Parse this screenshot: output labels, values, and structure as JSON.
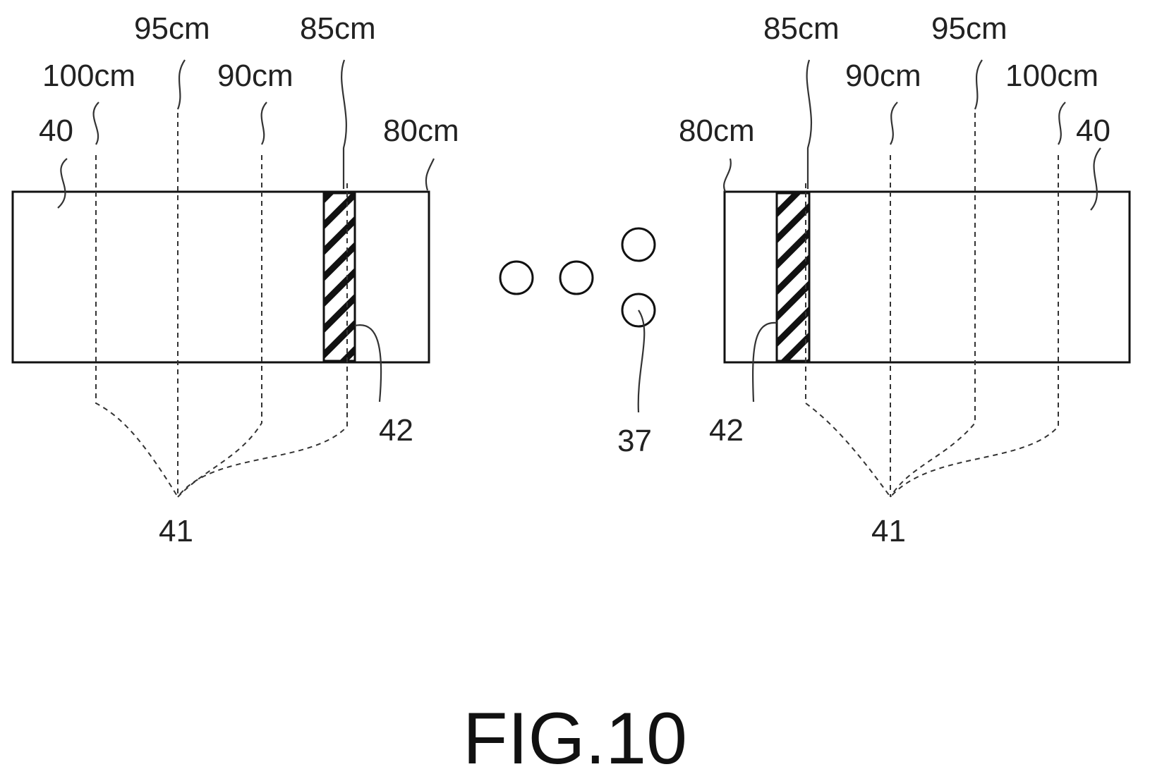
{
  "figure_title": "FIG.10",
  "left_panel": {
    "panel_ref": "40",
    "lines_ref": "41",
    "hatch_ref": "42",
    "distances": {
      "d80": "80cm",
      "d85": "85cm",
      "d90": "90cm",
      "d95": "95cm",
      "d100": "100cm"
    }
  },
  "right_panel": {
    "panel_ref": "40",
    "lines_ref": "41",
    "hatch_ref": "42",
    "distances": {
      "d80": "80cm",
      "d85": "85cm",
      "d90": "90cm",
      "d95": "95cm",
      "d100": "100cm"
    }
  },
  "dots_ref": "37"
}
